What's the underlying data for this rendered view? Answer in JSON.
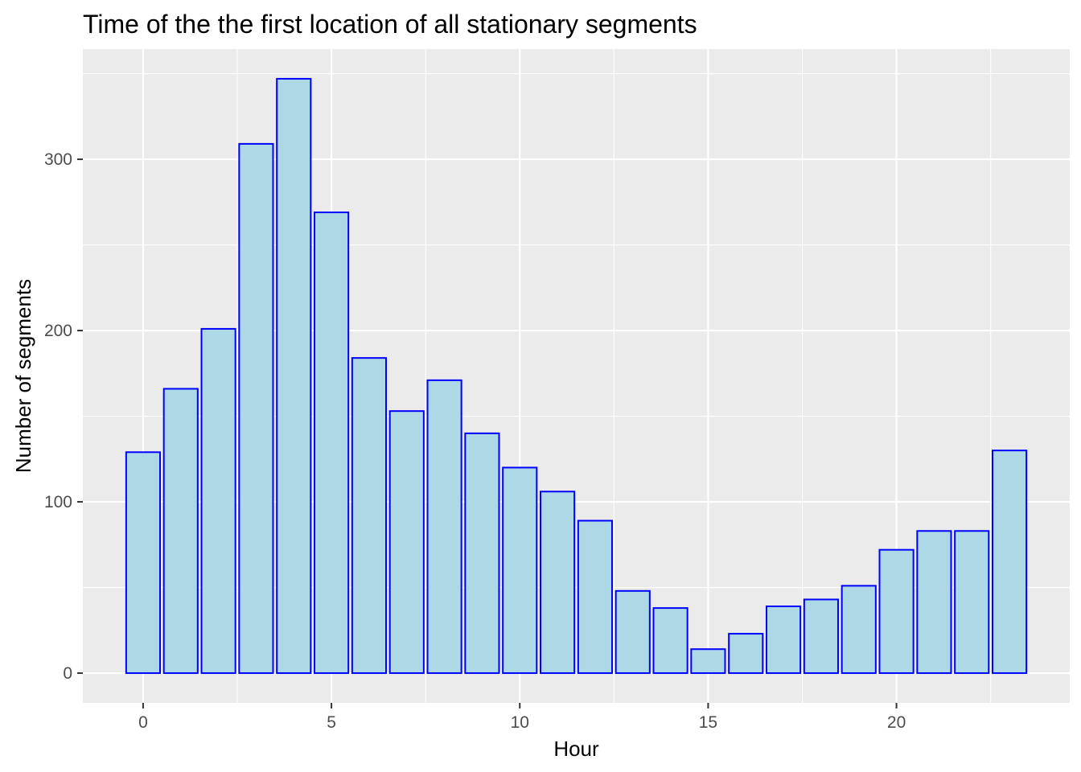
{
  "chart_data": {
    "type": "bar",
    "title": "Time of the the first location of all stationary segments",
    "xlabel": "Hour",
    "ylabel": "Number of segments",
    "x": [
      0,
      1,
      2,
      3,
      4,
      5,
      6,
      7,
      8,
      9,
      10,
      11,
      12,
      13,
      14,
      15,
      16,
      17,
      18,
      19,
      20,
      21,
      22,
      23
    ],
    "values": [
      129,
      166,
      201,
      309,
      347,
      269,
      184,
      153,
      171,
      140,
      120,
      106,
      89,
      48,
      38,
      14,
      23,
      39,
      43,
      51,
      72,
      83,
      83,
      130
    ],
    "xlim": [
      -1.6,
      24.6
    ],
    "ylim": [
      -17.35,
      364.35
    ],
    "x_ticks": [
      0,
      5,
      10,
      15,
      20
    ],
    "y_ticks": [
      0,
      100,
      200,
      300
    ],
    "grid": true,
    "legend": "none",
    "colors": {
      "panel_background": "#ebebeb",
      "grid_major": "#ffffff",
      "bar_fill": "#add8e6",
      "bar_outline": "#0000ff",
      "tick_text": "#4d4d4d"
    }
  }
}
